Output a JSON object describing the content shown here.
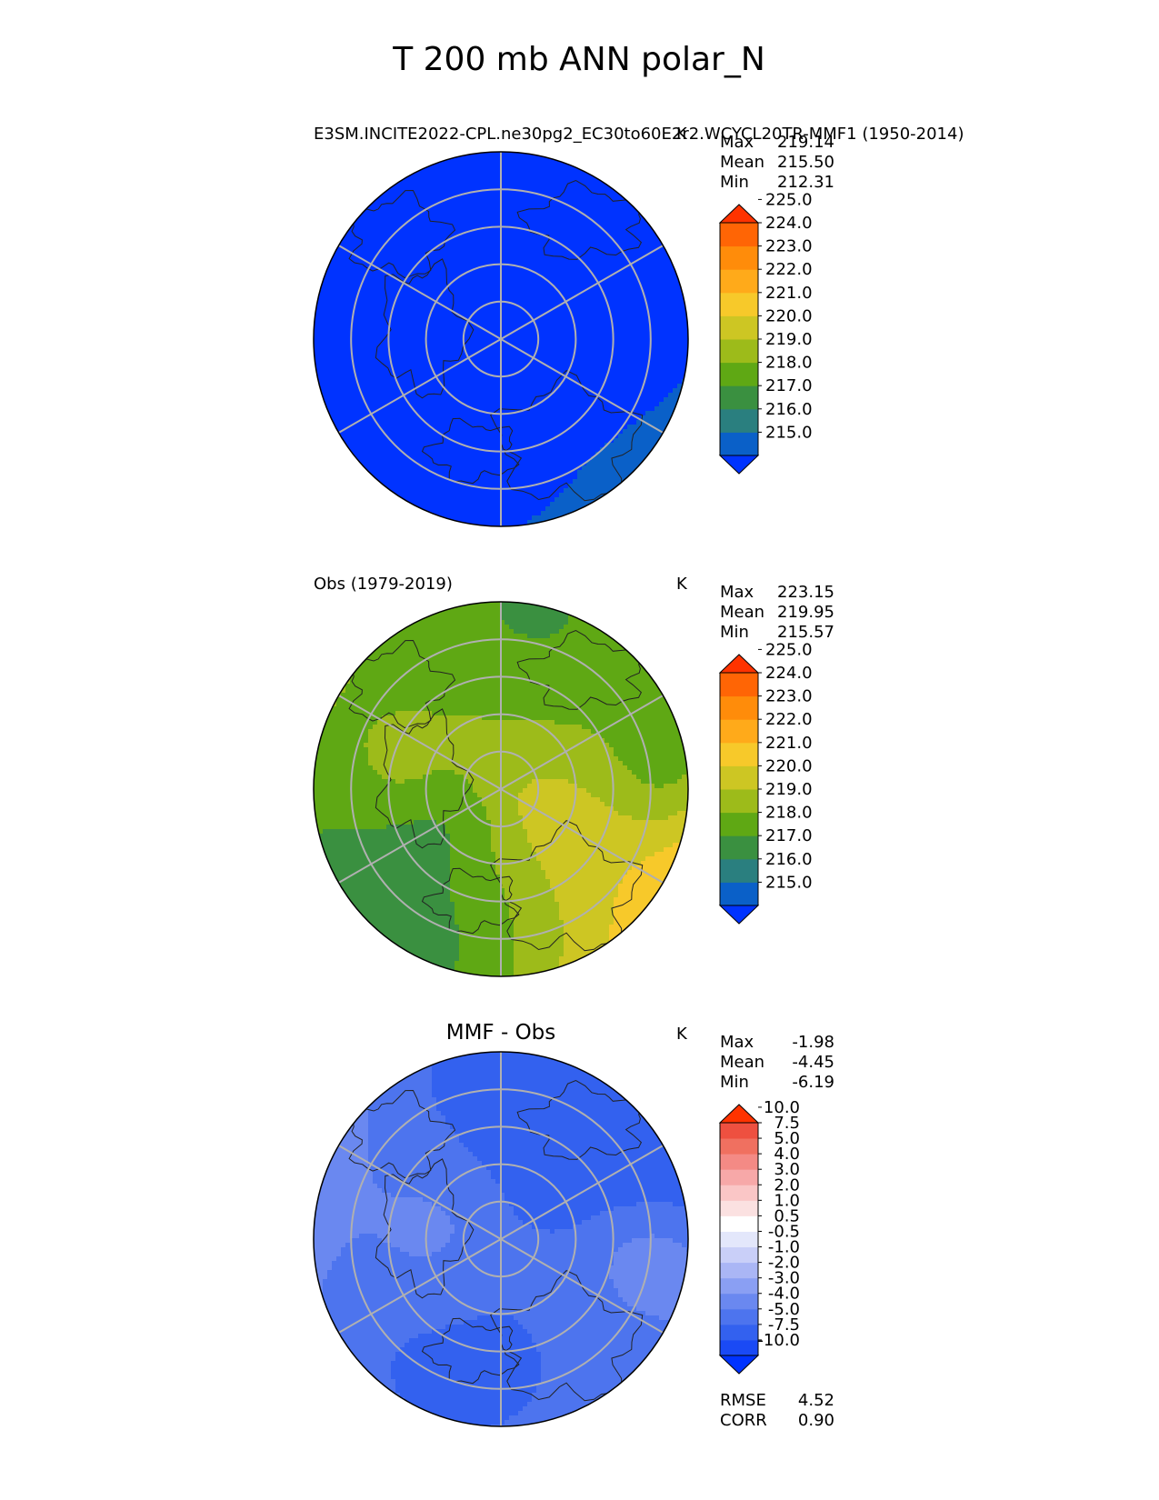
{
  "figure": {
    "title": "T 200 mb ANN polar_N"
  },
  "panels": [
    {
      "id": "test",
      "left_title": "E3SM.INCITE2022-CPL.ne30pg2_EC30to60E2r2.WCYCL20TR-MMF1 (1950-2014)",
      "center_title": "",
      "units": "K",
      "stats": [
        {
          "label": "Max",
          "value": "219.14"
        },
        {
          "label": "Mean",
          "value": "215.50"
        },
        {
          "label": "Min",
          "value": "212.31"
        }
      ],
      "colorbar": {
        "ticks": [
          "225.0",
          "224.0",
          "223.0",
          "222.0",
          "221.0",
          "220.0",
          "219.0",
          "218.0",
          "217.0",
          "216.0",
          "215.0"
        ],
        "colors": [
          "#0033ff",
          "#0a60c8",
          "#2a7f7f",
          "#3a9040",
          "#5fa814",
          "#9dbb1a",
          "#cdc623",
          "#f7c92a",
          "#ffaa1a",
          "#ff8c0a",
          "#ff6505",
          "#ff3300"
        ]
      },
      "field": {
        "base": 214.3,
        "ax": 0.6,
        "ay": 1.6,
        "b1": 0.7,
        "b2": -0.9,
        "ringAmp": 0.9
      }
    },
    {
      "id": "ref",
      "left_title": "Obs (1979-2019)",
      "center_title": "",
      "units": "K",
      "stats": [
        {
          "label": "Max",
          "value": "223.15"
        },
        {
          "label": "Mean",
          "value": "219.95"
        },
        {
          "label": "Min",
          "value": "215.57"
        }
      ],
      "colorbar": {
        "ticks": [
          "225.0",
          "224.0",
          "223.0",
          "222.0",
          "221.0",
          "220.0",
          "219.0",
          "218.0",
          "217.0",
          "216.0",
          "215.0"
        ],
        "colors": [
          "#0033ff",
          "#0a60c8",
          "#2a7f7f",
          "#3a9040",
          "#5fa814",
          "#9dbb1a",
          "#cdc623",
          "#f7c92a",
          "#ffaa1a",
          "#ff8c0a",
          "#ff6505",
          "#ff3300"
        ]
      },
      "field": {
        "base": 219.6,
        "ax": 1.4,
        "ay": 0.4,
        "b1": 1.3,
        "b2": -1.6,
        "ringAmp": 0.6
      }
    },
    {
      "id": "diff",
      "left_title": "",
      "center_title": "MMF - Obs",
      "units": "K",
      "stats": [
        {
          "label": "Max",
          "value": "-1.98"
        },
        {
          "label": "Mean",
          "value": "-4.45"
        },
        {
          "label": "Min",
          "value": "-6.19"
        }
      ],
      "colorbar": {
        "ticks": [
          "10.0",
          "7.5",
          "5.0",
          "4.0",
          "3.0",
          "2.0",
          "1.0",
          "0.5",
          "-0.5",
          "-1.0",
          "-2.0",
          "-3.0",
          "-4.0",
          "-5.0",
          "-7.5",
          "-10.0"
        ],
        "colors": [
          "#0033ff",
          "#1a4af5",
          "#3361ef",
          "#4d74ee",
          "#6a88f0",
          "#8a9ff3",
          "#aab6f5",
          "#c9cff8",
          "#e3e7fb",
          "#ffffff",
          "#fbe1e1",
          "#fac6c6",
          "#f7a8a8",
          "#f48a85",
          "#f07060",
          "#ee5040",
          "#ff3300"
        ]
      },
      "bottom_stats": [
        {
          "label": "RMSE",
          "value": "4.52"
        },
        {
          "label": "CORR",
          "value": "0.90"
        }
      ],
      "field": {
        "base": -4.4,
        "ax": -0.8,
        "ay": 0.5,
        "b1": 0.9,
        "b2": 0.5,
        "ringAmp": 0.7
      }
    }
  ]
}
